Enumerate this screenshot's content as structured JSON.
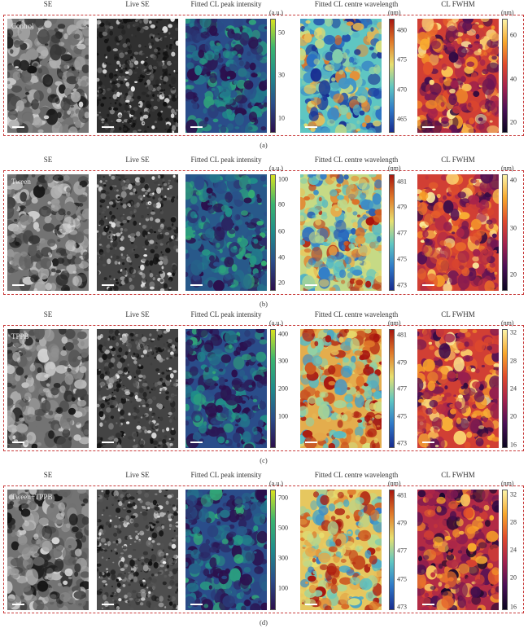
{
  "columns": [
    "SE",
    "Live SE",
    "Fitted CL peak intensity",
    "Fitted CL centre wavelength",
    "CL FWHM"
  ],
  "colormaps": {
    "gray": [
      "#111111",
      "#555555",
      "#aaaaaa",
      "#f2f2f2"
    ],
    "viridis": [
      "#2b0f4c",
      "#2a4d8a",
      "#1f8b8b",
      "#3bb46f",
      "#d9e21f"
    ],
    "jet": [
      "#172b8f",
      "#2f79c8",
      "#5fc6c2",
      "#e8e070",
      "#e07a2a",
      "#a8160f"
    ],
    "inferno": [
      "#0a0520",
      "#4a0f55",
      "#a3214d",
      "#e0492b",
      "#f8a72a",
      "#fcf4a8"
    ]
  },
  "panels": [
    {
      "sample": "Control",
      "caption": "(a)",
      "colorbars": [
        {
          "unit": "(a.u.)",
          "ticks": [
            "50",
            "30",
            "10"
          ]
        },
        {
          "unit": "(nm)",
          "ticks": [
            "480",
            "475",
            "470",
            "465"
          ]
        },
        {
          "unit": "(nm)",
          "ticks": [
            "60",
            "40",
            "20"
          ]
        }
      ]
    },
    {
      "sample": "Tween",
      "caption": "(b)",
      "colorbars": [
        {
          "unit": "(a.u.)",
          "ticks": [
            "100",
            "80",
            "60",
            "40",
            "20"
          ]
        },
        {
          "unit": "(nm)",
          "ticks": [
            "481",
            "479",
            "477",
            "475",
            "473"
          ]
        },
        {
          "unit": "(nm)",
          "ticks": [
            "40",
            "30",
            "20"
          ]
        }
      ]
    },
    {
      "sample": "TPPB",
      "caption": "(c)",
      "colorbars": [
        {
          "unit": "(a.u.)",
          "ticks": [
            "400",
            "300",
            "200",
            "100"
          ]
        },
        {
          "unit": "(nm)",
          "ticks": [
            "481",
            "479",
            "477",
            "475",
            "473"
          ]
        },
        {
          "unit": "(nm)",
          "ticks": [
            "32",
            "28",
            "24",
            "20",
            "16"
          ]
        }
      ]
    },
    {
      "sample": "Tween+TPPB",
      "caption": "(d)",
      "colorbars": [
        {
          "unit": "(a.u.)",
          "ticks": [
            "700",
            "500",
            "300",
            "100"
          ]
        },
        {
          "unit": "(nm)",
          "ticks": [
            "481",
            "479",
            "477",
            "475",
            "473"
          ]
        },
        {
          "unit": "(nm)",
          "ticks": [
            "32",
            "28",
            "24",
            "20",
            "16"
          ]
        }
      ]
    }
  ]
}
